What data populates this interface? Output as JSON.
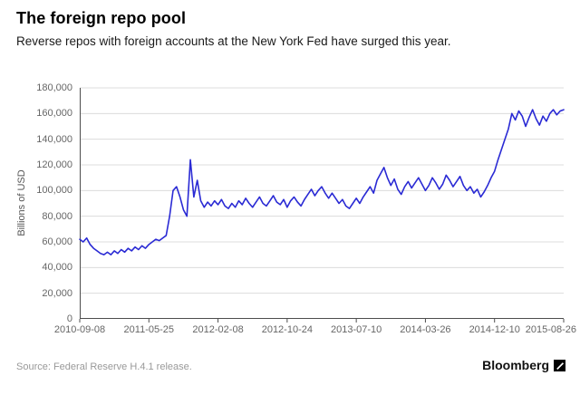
{
  "header": {
    "title": "The foreign repo pool",
    "subtitle": "Reverse repos with foreign accounts at the New York Fed have surged this year."
  },
  "footer": {
    "source": "Source: Federal Reserve H.4.1 release.",
    "brand": "Bloomberg"
  },
  "icons": {
    "brand_mark": "bloomberg-square-mark"
  },
  "chart_data": {
    "type": "line",
    "title": "The foreign repo pool",
    "xlabel": "",
    "ylabel": "Billions of USD",
    "ylim": [
      0,
      180000
    ],
    "ytick_values": [
      0,
      20000,
      40000,
      60000,
      80000,
      100000,
      120000,
      140000,
      160000,
      180000
    ],
    "ytick_labels": [
      "0",
      "20,000",
      "40,000",
      "60,000",
      "80,000",
      "100,000",
      "120,000",
      "140,000",
      "160,000",
      "180,000"
    ],
    "xticks": [
      "2010-09-08",
      "2011-05-25",
      "2012-02-08",
      "2012-10-24",
      "2013-07-10",
      "2014-03-26",
      "2014-12-10",
      "2015-08-26"
    ],
    "x_range": [
      "2010-09-08",
      "2015-08-26"
    ],
    "x_note": "weekly observations, evenly spaced",
    "grid": true,
    "legend": "none",
    "line_color": "#2a2ad4",
    "values": [
      62000,
      60000,
      63000,
      58000,
      55000,
      53000,
      51000,
      50000,
      52000,
      50000,
      53000,
      51000,
      54000,
      52000,
      55000,
      53000,
      56000,
      54000,
      57000,
      55000,
      58000,
      60000,
      62000,
      61000,
      63000,
      65000,
      80000,
      100000,
      103000,
      95000,
      85000,
      80000,
      124000,
      95000,
      108000,
      92000,
      87000,
      91000,
      88000,
      92000,
      89000,
      93000,
      88000,
      86000,
      90000,
      87000,
      92000,
      89000,
      94000,
      90000,
      87000,
      91000,
      95000,
      90000,
      88000,
      92000,
      96000,
      91000,
      89000,
      93000,
      87000,
      92000,
      95000,
      91000,
      88000,
      93000,
      97000,
      101000,
      96000,
      100000,
      103000,
      98000,
      94000,
      98000,
      94000,
      90000,
      93000,
      88000,
      86000,
      90000,
      94000,
      90000,
      95000,
      99000,
      103000,
      98000,
      108000,
      113000,
      118000,
      110000,
      104000,
      109000,
      101000,
      97000,
      103000,
      107000,
      102000,
      106000,
      110000,
      105000,
      100000,
      104000,
      110000,
      106000,
      101000,
      105000,
      112000,
      108000,
      103000,
      107000,
      111000,
      104000,
      100000,
      103000,
      98000,
      101000,
      95000,
      99000,
      104000,
      110000,
      115000,
      124000,
      132000,
      140000,
      148000,
      160000,
      155000,
      162000,
      158000,
      150000,
      157000,
      163000,
      156000,
      151000,
      158000,
      154000,
      160000,
      163000,
      159000,
      162000,
      163000
    ]
  }
}
